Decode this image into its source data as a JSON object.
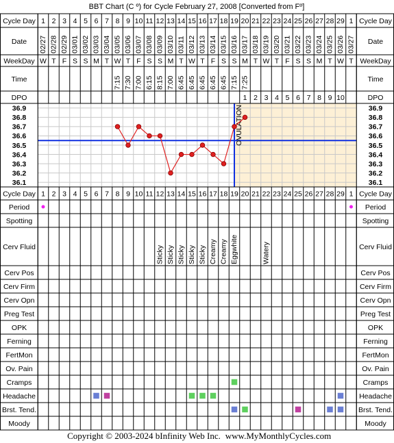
{
  "header": {
    "title": "BBT Chart (C º) for Cycle February 27, 2008  [Converted from Fº]"
  },
  "header_rows": [
    {
      "label": "Cycle Day",
      "vertical": false,
      "cells": [
        "1",
        "2",
        "3",
        "4",
        "5",
        "6",
        "7",
        "8",
        "9",
        "10",
        "11",
        "12",
        "13",
        "14",
        "15",
        "16",
        "17",
        "18",
        "19",
        "20",
        "21",
        "22",
        "23",
        "24",
        "25",
        "26",
        "27",
        "28",
        "29",
        "1"
      ]
    },
    {
      "label": "Date",
      "vertical": true,
      "cells": [
        "02/27",
        "02/28",
        "02/29",
        "03/01",
        "03/02",
        "03/03",
        "03/04",
        "03/05",
        "03/06",
        "03/07",
        "03/08",
        "03/09",
        "03/10",
        "03/11",
        "03/12",
        "03/13",
        "03/14",
        "03/15",
        "03/16",
        "03/17",
        "03/18",
        "03/19",
        "03/20",
        "03/21",
        "03/22",
        "03/23",
        "03/24",
        "03/25",
        "03/26",
        "03/27"
      ]
    },
    {
      "label": "WeekDay",
      "vertical": false,
      "cells": [
        "W",
        "T",
        "F",
        "S",
        "S",
        "M",
        "T",
        "W",
        "T",
        "F",
        "S",
        "S",
        "M",
        "T",
        "W",
        "T",
        "F",
        "S",
        "S",
        "M",
        "T",
        "W",
        "T",
        "F",
        "S",
        "S",
        "M",
        "T",
        "W",
        "T"
      ]
    },
    {
      "label": "Time",
      "vertical": true,
      "cells": [
        null,
        null,
        null,
        null,
        null,
        null,
        null,
        "7:15",
        "7:30",
        "7:00",
        "6:15",
        "8:15",
        "7:00",
        "6:45",
        "6:45",
        "6:45",
        "6:45",
        "6:45",
        "7:15",
        "7:25",
        null,
        null,
        null,
        null,
        null,
        null,
        null,
        null,
        null,
        null
      ]
    },
    {
      "label": "DPO",
      "vertical": false,
      "cells": [
        null,
        null,
        null,
        null,
        null,
        null,
        null,
        null,
        null,
        null,
        null,
        null,
        null,
        null,
        null,
        null,
        null,
        null,
        null,
        "1",
        "2",
        "3",
        "4",
        "5",
        "6",
        "7",
        "8",
        "9",
        "10",
        null
      ]
    }
  ],
  "chart_data": {
    "type": "line",
    "values": [
      null,
      null,
      null,
      null,
      null,
      null,
      null,
      36.7,
      36.5,
      36.7,
      36.6,
      36.6,
      36.2,
      36.4,
      36.4,
      36.5,
      36.4,
      36.3,
      36.7,
      36.8,
      null,
      null,
      null,
      null,
      null,
      null,
      null,
      null,
      null,
      null
    ],
    "color": "#e02020",
    "ylim": [
      36.05,
      36.95
    ],
    "yticks": [
      36.9,
      36.8,
      36.7,
      36.6,
      36.5,
      36.4,
      36.3,
      36.2,
      36.1
    ],
    "grid": true,
    "coverline": 36.55,
    "coverline_color": "#1030e0",
    "annotation": "OVULATION"
  },
  "rows": [
    {
      "label": "Period",
      "marker": "dot",
      "cells": [
        "#f020f0",
        null,
        null,
        null,
        null,
        null,
        null,
        null,
        null,
        null,
        null,
        null,
        null,
        null,
        null,
        null,
        null,
        null,
        null,
        null,
        null,
        null,
        null,
        null,
        null,
        null,
        null,
        null,
        null,
        "#f020f0"
      ]
    },
    {
      "label": "Spotting",
      "cells": []
    },
    {
      "label": "Cerv Fluid",
      "vertical": true,
      "cells": [
        null,
        null,
        null,
        null,
        null,
        null,
        null,
        null,
        null,
        null,
        null,
        "Sticky",
        "Sticky",
        "Sticky",
        "Sticky",
        "Sticky",
        "Creamy",
        "Creamy",
        "Eggwhite",
        null,
        null,
        "Watery",
        null,
        null,
        null,
        null,
        null,
        null,
        null,
        null
      ]
    },
    {
      "label": "Cerv Pos",
      "cells": []
    },
    {
      "label": "Cerv Firm",
      "cells": []
    },
    {
      "label": "Cerv Opn",
      "cells": []
    },
    {
      "label": "Preg Test",
      "cells": []
    },
    {
      "label": "OPK",
      "cells": []
    },
    {
      "label": "Ferning",
      "cells": []
    },
    {
      "label": "FertMon",
      "cells": []
    },
    {
      "label": "Ov. Pain",
      "cells": []
    },
    {
      "label": "Cramps",
      "marker": "square",
      "cells": [
        null,
        null,
        null,
        null,
        null,
        null,
        null,
        null,
        null,
        null,
        null,
        null,
        null,
        null,
        null,
        null,
        null,
        null,
        "#5ed05e",
        null,
        null,
        null,
        null,
        null,
        null,
        null,
        null,
        null,
        null,
        null
      ]
    },
    {
      "label": "Headache",
      "marker": "square",
      "cells": [
        null,
        null,
        null,
        null,
        null,
        "#6a7fd4",
        "#c040a0",
        null,
        null,
        null,
        null,
        null,
        null,
        null,
        "#5ed05e",
        "#5ed05e",
        "#5ed05e",
        null,
        null,
        null,
        null,
        null,
        null,
        null,
        null,
        null,
        null,
        null,
        "#6a7fd4",
        null
      ]
    },
    {
      "label": "Brst. Tend.",
      "marker": "square",
      "cells": [
        null,
        null,
        null,
        null,
        null,
        null,
        null,
        null,
        null,
        null,
        null,
        null,
        null,
        null,
        null,
        null,
        null,
        null,
        "#6a7fd4",
        "#5ed05e",
        null,
        null,
        null,
        null,
        "#c040a0",
        null,
        null,
        "#6a7fd4",
        "#6a7fd4",
        null
      ]
    },
    {
      "label": "Moody",
      "cells": []
    }
  ],
  "footer": {
    "copyright": "Copyright © 2003-2024 bInfinity Web Inc.",
    "site": "www.MyMonthlyCycles.com"
  }
}
